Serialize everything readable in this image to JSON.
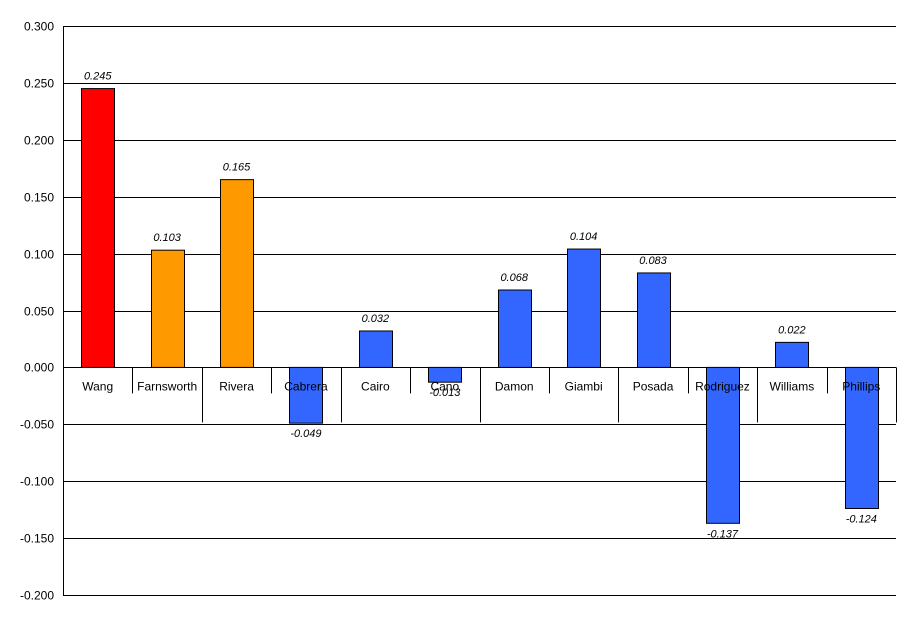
{
  "chart_data": {
    "type": "bar",
    "title": "",
    "xlabel": "",
    "ylabel": "",
    "categories": [
      "Wang",
      "Farnsworth",
      "Rivera",
      "Cabrera",
      "Cairo",
      "Cano",
      "Damon",
      "Giambi",
      "Posada",
      "Rodriguez",
      "Williams",
      "Phillips"
    ],
    "values": [
      0.245,
      0.103,
      0.165,
      -0.049,
      0.032,
      -0.013,
      0.068,
      0.104,
      0.083,
      -0.137,
      0.022,
      -0.124
    ],
    "data_labels": [
      "0.245",
      "0.103",
      "0.165",
      "-0.049",
      "0.032",
      "-0.013",
      "0.068",
      "0.104",
      "0.083",
      "-0.137",
      "0.022",
      "-0.124"
    ],
    "bar_colors": [
      "#ff0000",
      "#ff9900",
      "#ff9900",
      "#3366ff",
      "#3366ff",
      "#3366ff",
      "#3366ff",
      "#3366ff",
      "#3366ff",
      "#3366ff",
      "#3366ff",
      "#3366ff"
    ],
    "ylim": [
      -0.2,
      0.3
    ],
    "yticks": [
      0.3,
      0.25,
      0.2,
      0.15,
      0.1,
      0.05,
      0.0,
      -0.05,
      -0.1,
      -0.15,
      -0.2
    ],
    "ytick_labels": [
      "0.300",
      "0.250",
      "0.200",
      "0.150",
      "0.100",
      "0.050",
      "0.000",
      "-0.050",
      "-0.100",
      "-0.150",
      "-0.200"
    ],
    "grid": true,
    "legend": "none"
  }
}
